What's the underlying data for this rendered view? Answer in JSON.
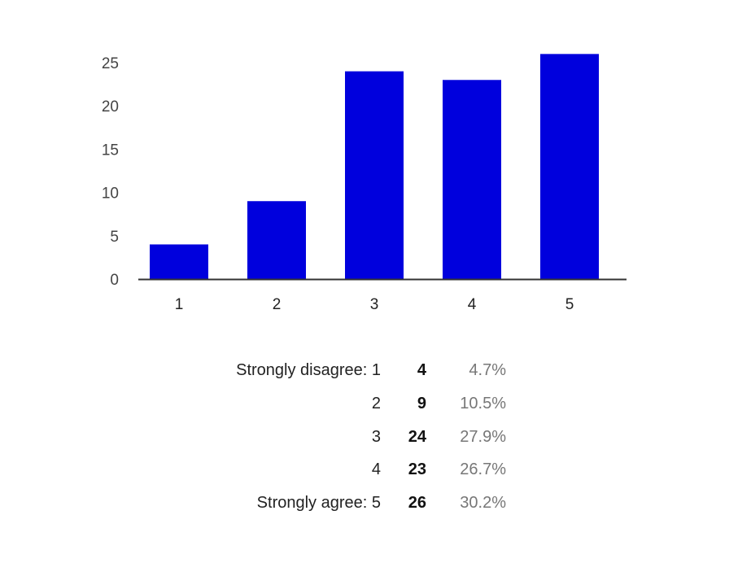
{
  "chart_data": {
    "type": "bar",
    "categories": [
      "1",
      "2",
      "3",
      "4",
      "5"
    ],
    "values": [
      4,
      9,
      24,
      23,
      26
    ],
    "yticks": [
      0,
      5,
      10,
      15,
      20,
      25
    ],
    "ylim": [
      0,
      26
    ],
    "bar_color": "#0000dd",
    "grid": false
  },
  "summary": [
    {
      "label": "Strongly disagree: 1",
      "count": "4",
      "percent": "4.7%"
    },
    {
      "label": "2",
      "count": "9",
      "percent": "10.5%"
    },
    {
      "label": "3",
      "count": "24",
      "percent": "27.9%"
    },
    {
      "label": "4",
      "count": "23",
      "percent": "26.7%"
    },
    {
      "label": "Strongly agree: 5",
      "count": "26",
      "percent": "30.2%"
    }
  ]
}
